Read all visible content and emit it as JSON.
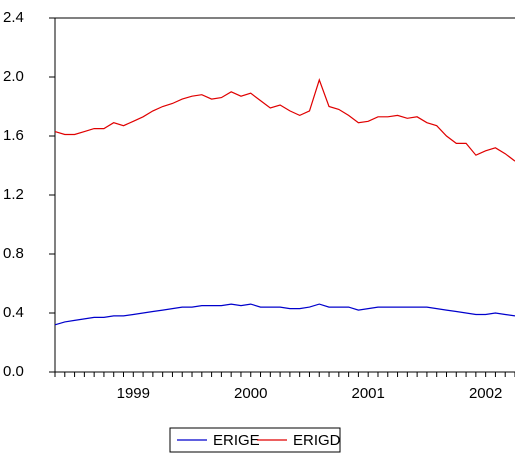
{
  "chart_data": {
    "type": "line",
    "categories": [
      null,
      null,
      null,
      null,
      null,
      null,
      null,
      null,
      "1999",
      null,
      null,
      null,
      null,
      null,
      null,
      null,
      null,
      null,
      null,
      null,
      "2000",
      null,
      null,
      null,
      null,
      null,
      null,
      null,
      null,
      null,
      null,
      null,
      "2001",
      null,
      null,
      null,
      null,
      null,
      null,
      null,
      null,
      null,
      null,
      null,
      "2002",
      null,
      null,
      null
    ],
    "series": [
      {
        "name": "ERIGE",
        "color": "#0000cc",
        "values": [
          0.32,
          0.34,
          0.35,
          0.36,
          0.37,
          0.37,
          0.38,
          0.38,
          0.39,
          0.4,
          0.41,
          0.42,
          0.43,
          0.44,
          0.44,
          0.45,
          0.45,
          0.45,
          0.46,
          0.45,
          0.46,
          0.44,
          0.44,
          0.44,
          0.43,
          0.43,
          0.44,
          0.46,
          0.44,
          0.44,
          0.44,
          0.42,
          0.43,
          0.44,
          0.44,
          0.44,
          0.44,
          0.44,
          0.44,
          0.43,
          0.42,
          0.41,
          0.4,
          0.39,
          0.39,
          0.4,
          0.39,
          0.38
        ]
      },
      {
        "name": "ERIGD",
        "color": "#e00000",
        "values": [
          1.63,
          1.61,
          1.61,
          1.63,
          1.65,
          1.65,
          1.69,
          1.67,
          1.7,
          1.73,
          1.77,
          1.8,
          1.82,
          1.85,
          1.87,
          1.88,
          1.85,
          1.86,
          1.9,
          1.87,
          1.89,
          1.84,
          1.79,
          1.81,
          1.77,
          1.74,
          1.77,
          1.98,
          1.8,
          1.78,
          1.74,
          1.69,
          1.7,
          1.73,
          1.73,
          1.74,
          1.72,
          1.73,
          1.69,
          1.67,
          1.6,
          1.55,
          1.55,
          1.47,
          1.5,
          1.52,
          1.48,
          1.43
        ]
      }
    ],
    "ylim": [
      0,
      2.4
    ],
    "yticks": [
      {
        "value": 0,
        "label": "0.0"
      },
      0.4,
      0.8,
      1.2,
      1.6,
      {
        "value": 2.0,
        "label": "2.0"
      },
      2.4
    ],
    "legend": "bottom"
  }
}
